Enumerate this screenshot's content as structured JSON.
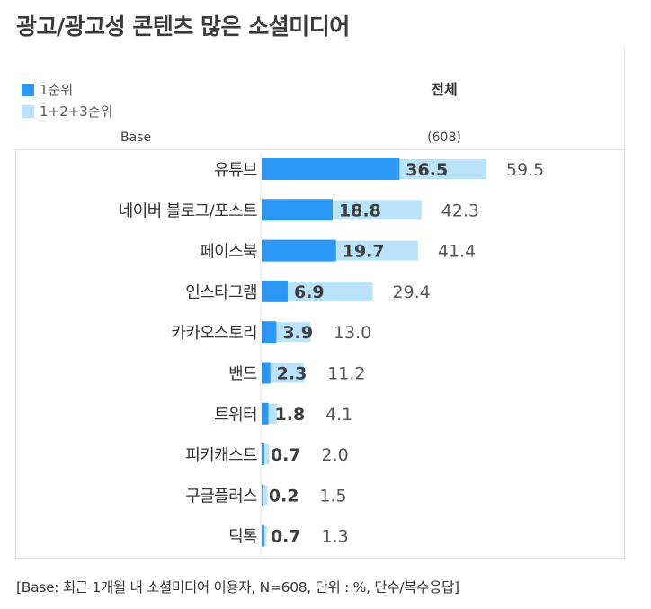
{
  "chart_data": {
    "type": "bar",
    "title": "광고/광고성 콘텐츠 많은 소셜미디어",
    "column_header": "전체",
    "base_label": "Base",
    "base_value": "(608)",
    "categories": [
      "유튜브",
      "네이버 블로그/포스트",
      "페이스북",
      "인스타그램",
      "카카오스토리",
      "밴드",
      "트위터",
      "피키캐스트",
      "구글플러스",
      "틱톡"
    ],
    "series": [
      {
        "name": "1순위",
        "values": [
          36.5,
          18.8,
          19.7,
          6.9,
          3.9,
          2.3,
          1.8,
          0.7,
          0.2,
          0.7
        ],
        "labels": [
          "36.5",
          "18.8",
          "19.7",
          "6.9",
          "3.9",
          "2.3",
          "1.8",
          "0.7",
          "0.2",
          "0.7"
        ],
        "color": "#2b98f6"
      },
      {
        "name": "1+2+3순위",
        "values": [
          59.5,
          42.3,
          41.4,
          29.4,
          13.0,
          11.2,
          4.1,
          2.0,
          1.5,
          1.3
        ],
        "labels": [
          "59.5",
          "42.3",
          "41.4",
          "29.4",
          "13.0",
          "11.2",
          "4.1",
          "2.0",
          "1.5",
          "1.3"
        ],
        "color": "#b8e3fb"
      }
    ],
    "xlim": [
      0,
      100
    ],
    "footnote": "[Base: 최근 1개월 내 소셜미디어 이용자, N=608, 단위 : %, 단수/복수응답]"
  }
}
